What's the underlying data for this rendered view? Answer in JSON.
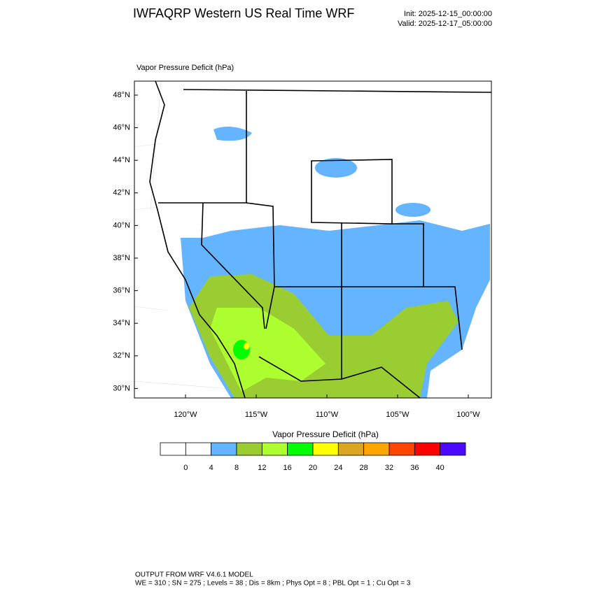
{
  "header": {
    "title": "IWFAQRP Western US Real Time WRF",
    "init": "Init: 2025-12-15_00:00:00",
    "valid": "Valid: 2025-12-17_05:00:00"
  },
  "map": {
    "label": "Vapor Pressure Deficit   (hPa)",
    "lat_labels": [
      "48°N",
      "46°N",
      "44°N",
      "42°N",
      "40°N",
      "38°N",
      "36°N",
      "34°N",
      "32°N",
      "30°N"
    ],
    "lon_labels": [
      "120°W",
      "115°W",
      "110°W",
      "105°W",
      "100°W"
    ]
  },
  "colorbar": {
    "title": "Vapor Pressure Deficit  (hPa)",
    "colors": [
      "#ffffff",
      "#ffffff",
      "#64b4ff",
      "#9acd32",
      "#adff2f",
      "#00ff00",
      "#ffff00",
      "#daa520",
      "#ffa500",
      "#ff4500",
      "#ff0000",
      "#4b0aff"
    ],
    "ticks": [
      0,
      4,
      8,
      12,
      16,
      20,
      24,
      28,
      32,
      36,
      40
    ]
  },
  "footer": {
    "line1": "OUTPUT FROM WRF V4.6.1 MODEL",
    "line2": "WE = 310 ; SN = 275 ; Levels = 38 ; Dis = 8km ; Phys Opt = 8 ; PBL Opt = 1 ; Cu Opt = 3"
  }
}
